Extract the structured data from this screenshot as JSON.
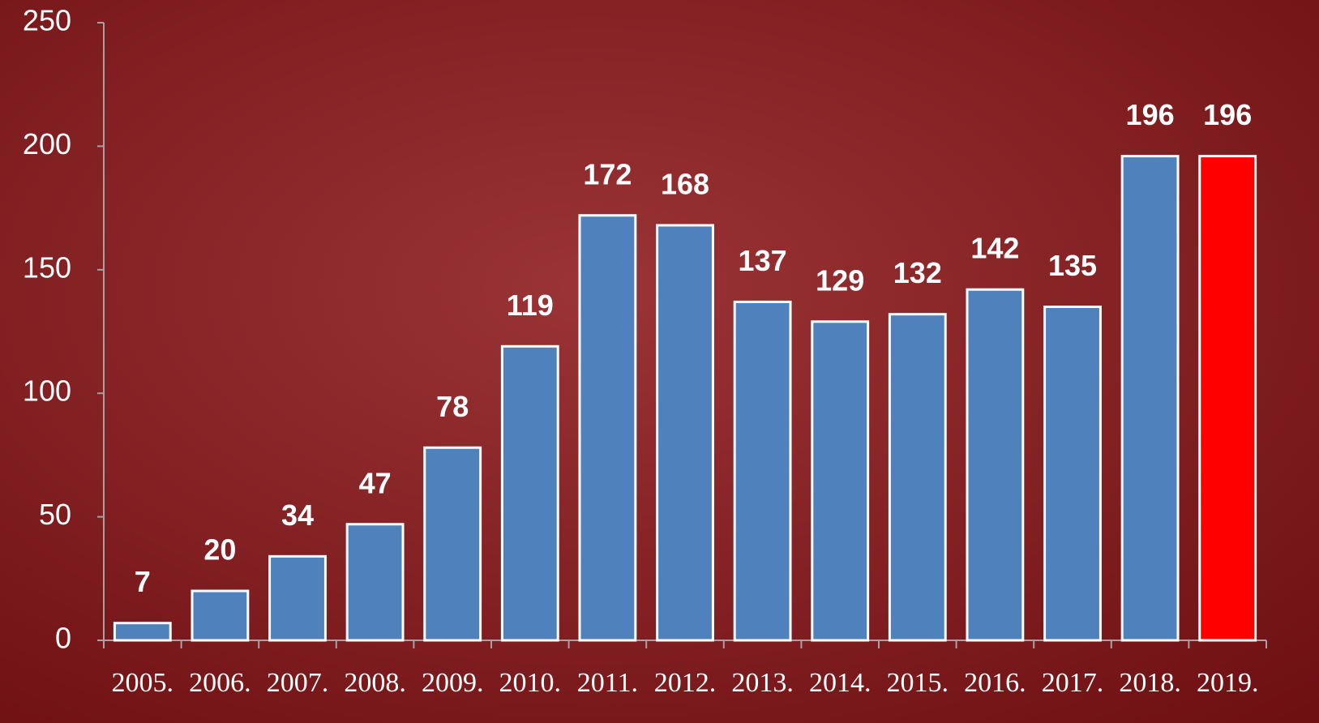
{
  "chart_data": {
    "type": "bar",
    "categories": [
      "2005.",
      "2006.",
      "2007.",
      "2008.",
      "2009.",
      "2010.",
      "2011.",
      "2012.",
      "2013.",
      "2014.",
      "2015.",
      "2016.",
      "2017.",
      "2018.",
      "2019."
    ],
    "values": [
      7,
      20,
      34,
      47,
      78,
      119,
      172,
      168,
      137,
      129,
      132,
      142,
      135,
      196,
      196
    ],
    "colors": [
      "#4f81bd",
      "#4f81bd",
      "#4f81bd",
      "#4f81bd",
      "#4f81bd",
      "#4f81bd",
      "#4f81bd",
      "#4f81bd",
      "#4f81bd",
      "#4f81bd",
      "#4f81bd",
      "#4f81bd",
      "#4f81bd",
      "#4f81bd",
      "#ff0000"
    ],
    "ylim": [
      0,
      250
    ],
    "yticks": [
      0,
      50,
      100,
      150,
      200,
      250
    ],
    "grid": false
  }
}
